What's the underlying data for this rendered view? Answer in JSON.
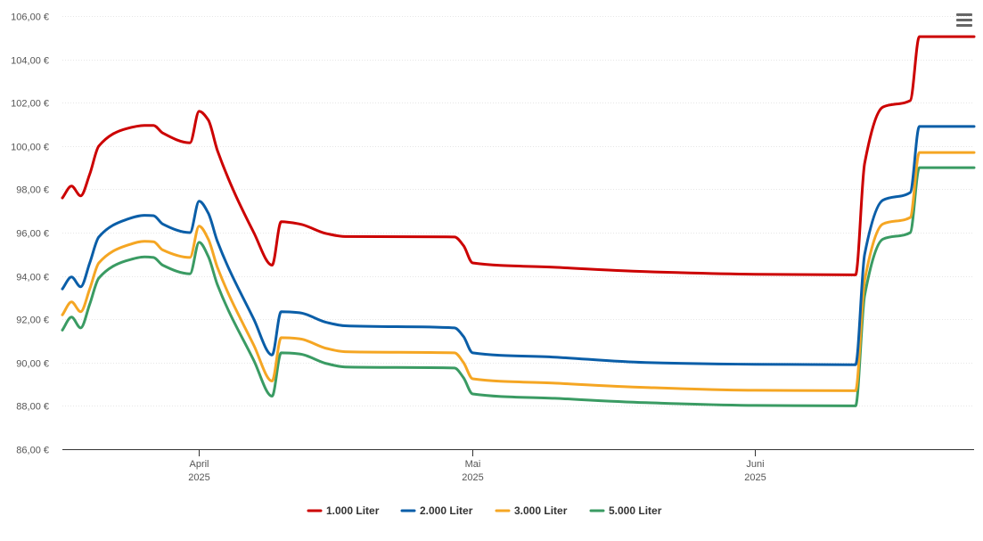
{
  "chart_data": {
    "type": "line",
    "title": "",
    "xlabel": "",
    "ylabel": "",
    "x_range": [
      "2025-03-17",
      "2025-06-25"
    ],
    "ylim": [
      86,
      106
    ],
    "y_ticks": [
      86,
      88,
      90,
      92,
      94,
      96,
      98,
      100,
      102,
      104,
      106
    ],
    "y_tick_labels": [
      "86,00 €",
      "88,00 €",
      "90,00 €",
      "92,00 €",
      "94,00 €",
      "96,00 €",
      "98,00 €",
      "100,00 €",
      "102,00 €",
      "104,00 €",
      "106,00 €"
    ],
    "x_ticks": [
      {
        "date": "2025-04-01",
        "label": "April",
        "sublabel": "2025"
      },
      {
        "date": "2025-05-01",
        "label": "Mai",
        "sublabel": "2025"
      },
      {
        "date": "2025-06-01",
        "label": "Juni",
        "sublabel": "2025"
      }
    ],
    "grid": true,
    "legend_position": "bottom-center",
    "series": [
      {
        "name": "1.000 Liter",
        "color": "#cc0000",
        "points": [
          [
            "2025-03-17",
            97.6
          ],
          [
            "2025-03-18",
            98.15
          ],
          [
            "2025-03-19",
            97.7
          ],
          [
            "2025-03-20",
            98.7
          ],
          [
            "2025-03-21",
            100.0
          ],
          [
            "2025-03-24",
            100.8
          ],
          [
            "2025-03-26",
            100.95
          ],
          [
            "2025-03-27",
            100.95
          ],
          [
            "2025-03-28",
            100.6
          ],
          [
            "2025-03-31",
            100.15
          ],
          [
            "2025-04-01",
            101.6
          ],
          [
            "2025-04-02",
            101.2
          ],
          [
            "2025-04-03",
            99.8
          ],
          [
            "2025-04-07",
            96.0
          ],
          [
            "2025-04-09",
            94.5
          ],
          [
            "2025-04-10",
            96.5
          ],
          [
            "2025-04-12",
            96.4
          ],
          [
            "2025-04-15",
            95.95
          ],
          [
            "2025-04-17",
            95.82
          ],
          [
            "2025-04-29",
            95.8
          ],
          [
            "2025-04-30",
            95.4
          ],
          [
            "2025-05-01",
            94.6
          ],
          [
            "2025-05-10",
            94.4
          ],
          [
            "2025-05-20",
            94.2
          ],
          [
            "2025-06-01",
            94.08
          ],
          [
            "2025-06-12",
            94.05
          ],
          [
            "2025-06-13",
            99.2
          ],
          [
            "2025-06-15",
            101.8
          ],
          [
            "2025-06-18",
            102.1
          ],
          [
            "2025-06-19",
            105.05
          ],
          [
            "2025-06-25",
            105.05
          ]
        ]
      },
      {
        "name": "2.000 Liter",
        "color": "#0a5ea8",
        "points": [
          [
            "2025-03-17",
            93.4
          ],
          [
            "2025-03-18",
            93.95
          ],
          [
            "2025-03-19",
            93.5
          ],
          [
            "2025-03-20",
            94.6
          ],
          [
            "2025-03-21",
            95.8
          ],
          [
            "2025-03-24",
            96.6
          ],
          [
            "2025-03-26",
            96.8
          ],
          [
            "2025-03-27",
            96.78
          ],
          [
            "2025-03-28",
            96.4
          ],
          [
            "2025-03-31",
            96.0
          ],
          [
            "2025-04-01",
            97.45
          ],
          [
            "2025-04-02",
            96.9
          ],
          [
            "2025-04-03",
            95.6
          ],
          [
            "2025-04-07",
            92.0
          ],
          [
            "2025-04-09",
            90.35
          ],
          [
            "2025-04-10",
            92.35
          ],
          [
            "2025-04-12",
            92.3
          ],
          [
            "2025-04-15",
            91.85
          ],
          [
            "2025-04-17",
            91.7
          ],
          [
            "2025-04-29",
            91.6
          ],
          [
            "2025-04-30",
            91.2
          ],
          [
            "2025-05-01",
            90.45
          ],
          [
            "2025-05-10",
            90.25
          ],
          [
            "2025-05-20",
            90.0
          ],
          [
            "2025-06-01",
            89.92
          ],
          [
            "2025-06-12",
            89.9
          ],
          [
            "2025-06-13",
            95.0
          ],
          [
            "2025-06-15",
            97.5
          ],
          [
            "2025-06-18",
            97.85
          ],
          [
            "2025-06-19",
            100.9
          ],
          [
            "2025-06-25",
            100.9
          ]
        ]
      },
      {
        "name": "3.000 Liter",
        "color": "#f5a623",
        "points": [
          [
            "2025-03-17",
            92.2
          ],
          [
            "2025-03-18",
            92.8
          ],
          [
            "2025-03-19",
            92.35
          ],
          [
            "2025-03-20",
            93.4
          ],
          [
            "2025-03-21",
            94.6
          ],
          [
            "2025-03-24",
            95.4
          ],
          [
            "2025-03-26",
            95.6
          ],
          [
            "2025-03-27",
            95.58
          ],
          [
            "2025-03-28",
            95.2
          ],
          [
            "2025-03-31",
            94.85
          ],
          [
            "2025-04-01",
            96.3
          ],
          [
            "2025-04-02",
            95.7
          ],
          [
            "2025-04-03",
            94.4
          ],
          [
            "2025-04-07",
            90.8
          ],
          [
            "2025-04-09",
            89.15
          ],
          [
            "2025-04-10",
            91.15
          ],
          [
            "2025-04-12",
            91.1
          ],
          [
            "2025-04-15",
            90.65
          ],
          [
            "2025-04-17",
            90.5
          ],
          [
            "2025-04-29",
            90.45
          ],
          [
            "2025-04-30",
            90.0
          ],
          [
            "2025-05-01",
            89.25
          ],
          [
            "2025-05-10",
            89.05
          ],
          [
            "2025-05-20",
            88.85
          ],
          [
            "2025-06-01",
            88.72
          ],
          [
            "2025-06-12",
            88.7
          ],
          [
            "2025-06-13",
            93.8
          ],
          [
            "2025-06-15",
            96.4
          ],
          [
            "2025-06-18",
            96.7
          ],
          [
            "2025-06-19",
            99.7
          ],
          [
            "2025-06-25",
            99.7
          ]
        ]
      },
      {
        "name": "5.000 Liter",
        "color": "#3a9b63",
        "points": [
          [
            "2025-03-17",
            91.5
          ],
          [
            "2025-03-18",
            92.1
          ],
          [
            "2025-03-19",
            91.6
          ],
          [
            "2025-03-20",
            92.7
          ],
          [
            "2025-03-21",
            93.9
          ],
          [
            "2025-03-24",
            94.7
          ],
          [
            "2025-03-26",
            94.88
          ],
          [
            "2025-03-27",
            94.85
          ],
          [
            "2025-03-28",
            94.5
          ],
          [
            "2025-03-31",
            94.1
          ],
          [
            "2025-04-01",
            95.55
          ],
          [
            "2025-04-02",
            94.9
          ],
          [
            "2025-04-03",
            93.6
          ],
          [
            "2025-04-07",
            90.1
          ],
          [
            "2025-04-09",
            88.45
          ],
          [
            "2025-04-10",
            90.45
          ],
          [
            "2025-04-12",
            90.4
          ],
          [
            "2025-04-15",
            89.95
          ],
          [
            "2025-04-17",
            89.8
          ],
          [
            "2025-04-29",
            89.75
          ],
          [
            "2025-04-30",
            89.3
          ],
          [
            "2025-05-01",
            88.55
          ],
          [
            "2025-05-10",
            88.35
          ],
          [
            "2025-05-20",
            88.15
          ],
          [
            "2025-06-01",
            88.02
          ],
          [
            "2025-06-12",
            88.0
          ],
          [
            "2025-06-13",
            93.1
          ],
          [
            "2025-06-15",
            95.7
          ],
          [
            "2025-06-18",
            96.0
          ],
          [
            "2025-06-19",
            99.0
          ],
          [
            "2025-06-25",
            99.0
          ]
        ]
      }
    ]
  },
  "ui": {
    "menu_icon": "hamburger-menu-icon"
  }
}
